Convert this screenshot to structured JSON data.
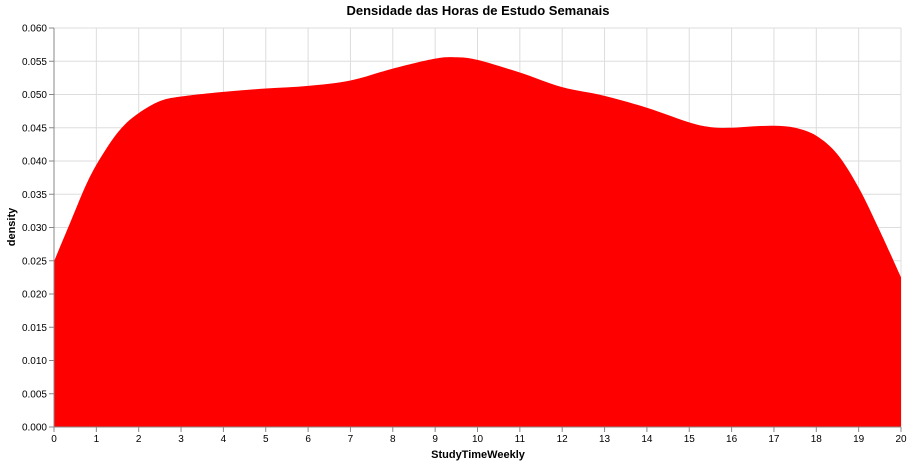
{
  "chart_data": {
    "type": "area",
    "title": "Densidade das Horas de Estudo Semanais",
    "xlabel": "StudyTimeWeekly",
    "ylabel": "density",
    "xlim": [
      0,
      20
    ],
    "ylim": [
      0,
      0.06
    ],
    "x_ticks": [
      0,
      1,
      2,
      3,
      4,
      5,
      6,
      7,
      8,
      9,
      10,
      11,
      12,
      13,
      14,
      15,
      16,
      17,
      18,
      19,
      20
    ],
    "y_ticks": [
      0.0,
      0.005,
      0.01,
      0.015,
      0.02,
      0.025,
      0.03,
      0.035,
      0.04,
      0.045,
      0.05,
      0.055,
      0.06
    ],
    "grid": true,
    "fill_color": "#ff0000",
    "x": [
      0,
      0.4,
      0.8,
      1.2,
      1.6,
      2.0,
      2.5,
      3.0,
      4.0,
      5.0,
      6.0,
      7.0,
      8.0,
      9.0,
      9.5,
      10.0,
      11.0,
      12.0,
      13.0,
      14.0,
      15.0,
      15.5,
      16.0,
      16.5,
      17.0,
      17.5,
      18.0,
      18.5,
      19.0,
      19.5,
      20.0
    ],
    "y": [
      0.0249,
      0.031,
      0.037,
      0.0415,
      0.045,
      0.0472,
      0.049,
      0.0497,
      0.0504,
      0.0509,
      0.0513,
      0.0521,
      0.0539,
      0.0554,
      0.0556,
      0.0552,
      0.0533,
      0.0511,
      0.0498,
      0.048,
      0.0458,
      0.0451,
      0.045,
      0.0452,
      0.0453,
      0.045,
      0.0438,
      0.041,
      0.036,
      0.0295,
      0.0225
    ]
  }
}
